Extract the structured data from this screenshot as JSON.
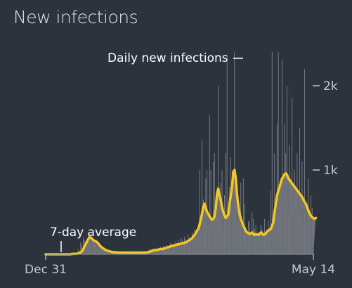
{
  "title": "New infections",
  "colors": {
    "background": "#2d333d",
    "bars": "#a6a8ab",
    "area": "#71757b",
    "line": "#f3c623",
    "text": "#c3c8cf",
    "annotation": "#ffffff"
  },
  "chart_data": {
    "type": "bar",
    "title": "New infections",
    "x_tick_labels": [
      "Dec 31",
      "May 14"
    ],
    "y_tick_labels": [
      "2k",
      "1k"
    ],
    "y_ticks": [
      2000,
      1000
    ],
    "ylim": [
      0,
      2500
    ],
    "annotations": {
      "daily_label": "Daily new infections",
      "average_label": "7-day average"
    },
    "series": [
      {
        "name": "Daily new infections",
        "kind": "bar",
        "values": [
          0,
          0,
          0,
          0,
          0,
          0,
          0,
          0,
          0,
          0,
          0,
          0,
          0,
          0,
          0,
          0,
          0,
          0,
          0,
          0,
          0,
          5,
          6,
          12,
          8,
          15,
          60,
          40,
          150,
          110,
          200,
          165,
          95,
          120,
          260,
          140,
          80,
          200,
          170,
          110,
          150,
          95,
          70,
          80,
          60,
          90,
          55,
          40,
          35,
          50,
          45,
          30,
          38,
          25,
          30,
          26,
          22,
          28,
          20,
          22,
          18,
          25,
          20,
          26,
          18,
          22,
          16,
          20,
          24,
          18,
          16,
          22,
          20,
          26,
          18,
          24,
          22,
          30,
          28,
          26,
          35,
          40,
          45,
          60,
          55,
          50,
          70,
          40,
          60,
          75,
          50,
          80,
          65,
          70,
          100,
          80,
          60,
          110,
          90,
          95,
          140,
          100,
          120,
          130,
          160,
          120,
          170,
          140,
          190,
          180,
          150,
          210,
          180,
          160,
          240,
          200,
          180,
          260,
          220,
          300,
          250,
          200,
          320,
          1000,
          420,
          1350,
          650,
          400,
          900,
          1000,
          300,
          1650,
          1000,
          400,
          1100,
          1200,
          600,
          450,
          2000,
          600,
          850,
          1000,
          300,
          700,
          1200,
          2350,
          300,
          800,
          1150,
          1000,
          500,
          2400,
          600,
          350,
          700,
          400,
          850,
          250,
          900,
          600,
          300,
          180,
          400,
          380,
          260,
          500,
          420,
          300,
          350,
          200,
          260,
          230,
          350,
          300,
          170,
          420,
          260,
          300,
          400,
          320,
          750,
          2400,
          350,
          1200,
          600,
          1550,
          2400,
          700,
          900,
          2300,
          850,
          1550,
          1200,
          2000,
          450,
          1300,
          900,
          1850,
          600,
          1000,
          750,
          1200,
          550,
          1500,
          700,
          1100,
          400,
          2200,
          600,
          400,
          900,
          500,
          700,
          550,
          400
        ]
      },
      {
        "name": "7-day average",
        "kind": "line",
        "values": [
          0,
          0,
          0,
          0,
          0,
          0,
          0,
          0,
          0,
          0,
          0,
          0,
          0,
          0,
          0,
          0,
          0,
          0,
          0,
          0,
          0,
          5,
          5,
          5,
          6,
          7,
          10,
          15,
          22,
          35,
          60,
          90,
          120,
          150,
          180,
          200,
          200,
          185,
          170,
          160,
          155,
          145,
          130,
          110,
          95,
          80,
          70,
          60,
          50,
          45,
          40,
          35,
          32,
          28,
          26,
          24,
          22,
          22,
          21,
          20,
          20,
          20,
          20,
          20,
          20,
          20,
          20,
          20,
          20,
          20,
          20,
          20,
          20,
          20,
          20,
          20,
          20,
          20,
          20,
          20,
          20,
          22,
          25,
          30,
          35,
          40,
          45,
          50,
          50,
          50,
          55,
          60,
          65,
          60,
          65,
          70,
          75,
          80,
          85,
          90,
          95,
          100,
          100,
          105,
          110,
          115,
          120,
          120,
          125,
          130,
          130,
          140,
          140,
          150,
          160,
          170,
          180,
          190,
          210,
          230,
          250,
          280,
          300,
          350,
          410,
          480,
          560,
          600,
          550,
          500,
          480,
          450,
          430,
          410,
          420,
          450,
          550,
          720,
          780,
          700,
          640,
          560,
          500,
          460,
          430,
          450,
          470,
          600,
          700,
          800,
          970,
          1000,
          900,
          700,
          580,
          480,
          420,
          380,
          340,
          310,
          280,
          260,
          250,
          240,
          250,
          260,
          240,
          230,
          240,
          235,
          230,
          240,
          260,
          250,
          230,
          235,
          250,
          270,
          280,
          290,
          300,
          340,
          380,
          500,
          600,
          700,
          750,
          800,
          850,
          900,
          920,
          950,
          960,
          940,
          900,
          880,
          860,
          840,
          820,
          800,
          780,
          760,
          740,
          720,
          700,
          680,
          650,
          620,
          600,
          560,
          520,
          480,
          460,
          440,
          430,
          420,
          430
        ]
      }
    ]
  }
}
